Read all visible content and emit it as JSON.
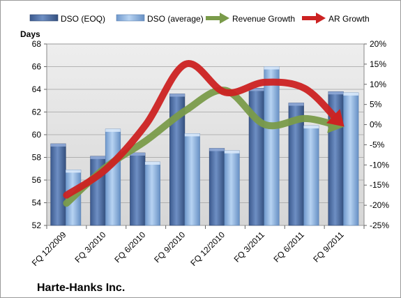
{
  "chart_data": {
    "type": "bar",
    "company": "Harte-Hanks Inc.",
    "ylabel": "Days",
    "categories": [
      "FQ 12/2009",
      "FQ 3/2010",
      "FQ 6/2010",
      "FQ 9/2010",
      "FQ 12/2010",
      "FQ 3/2011",
      "FQ 6/2011",
      "FQ 9/2011"
    ],
    "ylim": [
      52,
      68
    ],
    "yticks": [
      "52",
      "54",
      "56",
      "58",
      "60",
      "62",
      "64",
      "66",
      "68"
    ],
    "y2lim": [
      -25,
      20
    ],
    "y2ticks": [
      "-25%",
      "-20%",
      "-15%",
      "-10%",
      "-5%",
      "0%",
      "5%",
      "10%",
      "15%",
      "20%"
    ],
    "grid": true,
    "legend_position": "top",
    "series": [
      {
        "name": "DSO (EOQ)",
        "kind": "bar",
        "color": "#4f6fa6",
        "values": [
          59.2,
          58.1,
          58.4,
          63.6,
          58.8,
          64.1,
          62.8,
          63.8
        ]
      },
      {
        "name": "DSO (average)",
        "kind": "bar",
        "color": "#8fb6e3",
        "values": [
          56.9,
          60.5,
          57.6,
          60.1,
          58.6,
          66.0,
          60.8,
          63.7
        ]
      },
      {
        "name": "Revenue Growth",
        "kind": "arrow-line",
        "axis": "right",
        "color": "#7a9b4a",
        "values": [
          -19.5,
          -10.5,
          -4.0,
          3.5,
          8.5,
          0.0,
          1.5,
          -0.5
        ]
      },
      {
        "name": "AR Growth",
        "kind": "arrow-line",
        "axis": "right",
        "color": "#cc2222",
        "values": [
          -17.5,
          -11.0,
          0.0,
          15.0,
          8.0,
          10.5,
          9.0,
          -0.5
        ]
      }
    ]
  }
}
